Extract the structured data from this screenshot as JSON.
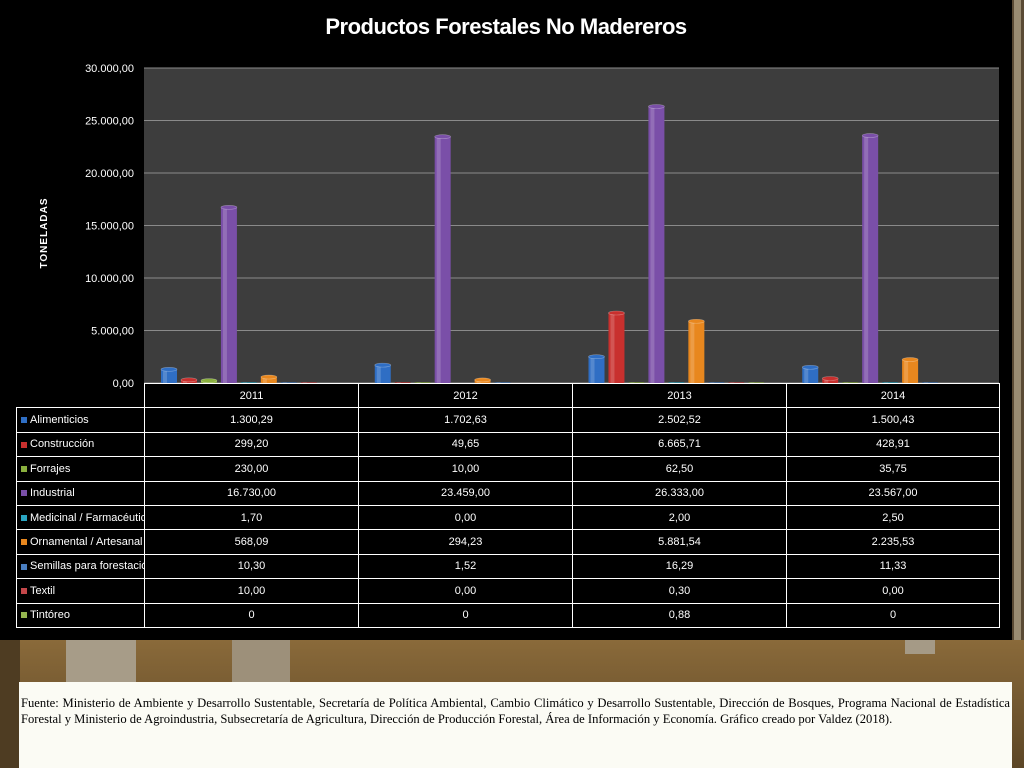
{
  "chart_data": {
    "type": "bar",
    "title": "Productos Forestales No Madereros",
    "ylabel": "TONELADAS",
    "xlabel": "",
    "ylim": [
      0,
      30000
    ],
    "y_ticks": [
      "0,00",
      "5.000,00",
      "10.000,00",
      "15.000,00",
      "20.000,00",
      "25.000,00",
      "30.000,00"
    ],
    "grid": true,
    "legend": "data-table",
    "categories": [
      "2011",
      "2012",
      "2013",
      "2014"
    ],
    "series": [
      {
        "name": "Alimenticios",
        "color": "#2f6ec4",
        "values": [
          1300.29,
          1702.63,
          2502.52,
          1500.43
        ],
        "labels": [
          "1.300,29",
          "1.702,63",
          "2.502,52",
          "1.500,43"
        ]
      },
      {
        "name": "Construcción",
        "color": "#c8302e",
        "values": [
          299.2,
          49.65,
          6665.71,
          428.91
        ],
        "labels": [
          "299,20",
          "49,65",
          "6.665,71",
          "428,91"
        ]
      },
      {
        "name": "Forrajes",
        "color": "#8ab03e",
        "values": [
          230.0,
          10.0,
          62.5,
          35.75
        ],
        "labels": [
          "230,00",
          "10,00",
          "62,50",
          "35,75"
        ]
      },
      {
        "name": "Industrial",
        "color": "#7a4fa8",
        "values": [
          16730.0,
          23459.0,
          26333.0,
          23567.0
        ],
        "labels": [
          "16.730,00",
          "23.459,00",
          "26.333,00",
          "23.567,00"
        ]
      },
      {
        "name": "Medicinal /  Farmacéutico",
        "color": "#2aa5c2",
        "values": [
          1.7,
          0.0,
          2.0,
          2.5
        ],
        "labels": [
          "1,70",
          "0,00",
          "2,00",
          "2,50"
        ]
      },
      {
        "name": "Ornamental / Artesanal",
        "color": "#e8871e",
        "values": [
          568.09,
          294.23,
          5881.54,
          2235.53
        ],
        "labels": [
          "568,09",
          "294,23",
          "5.881,54",
          "2.235,53"
        ]
      },
      {
        "name": "Semillas para forestación",
        "color": "#4a7fc1",
        "values": [
          10.3,
          1.52,
          16.29,
          11.33
        ],
        "labels": [
          "10,30",
          "1,52",
          "16,29",
          "11,33"
        ]
      },
      {
        "name": "Textil",
        "color": "#c4474a",
        "values": [
          10.0,
          0.0,
          0.3,
          0.0
        ],
        "labels": [
          "10,00",
          "0,00",
          "0,30",
          "0,00"
        ]
      },
      {
        "name": "Tintóreo",
        "color": "#95b650",
        "values": [
          0,
          0,
          0.88,
          0
        ],
        "labels": [
          "0",
          "0",
          "0,88",
          "0"
        ]
      }
    ]
  },
  "source_note": "Fuente: Ministerio de Ambiente y Desarrollo Sustentable, Secretaría de Política Ambiental, Cambio Climático y Desarrollo Sustentable, Dirección de Bosques, Programa Nacional de Estadística Forestal y Ministerio de Agroindustria, Subsecretaría de Agricultura, Dirección de Producción Forestal,  Área de Información y Economía. Gráfico creado por Valdez (2018).",
  "colors": {
    "panel_bg": "#000000",
    "plot_bg": "#3d3d3d",
    "grid": "#8a8a8a"
  }
}
